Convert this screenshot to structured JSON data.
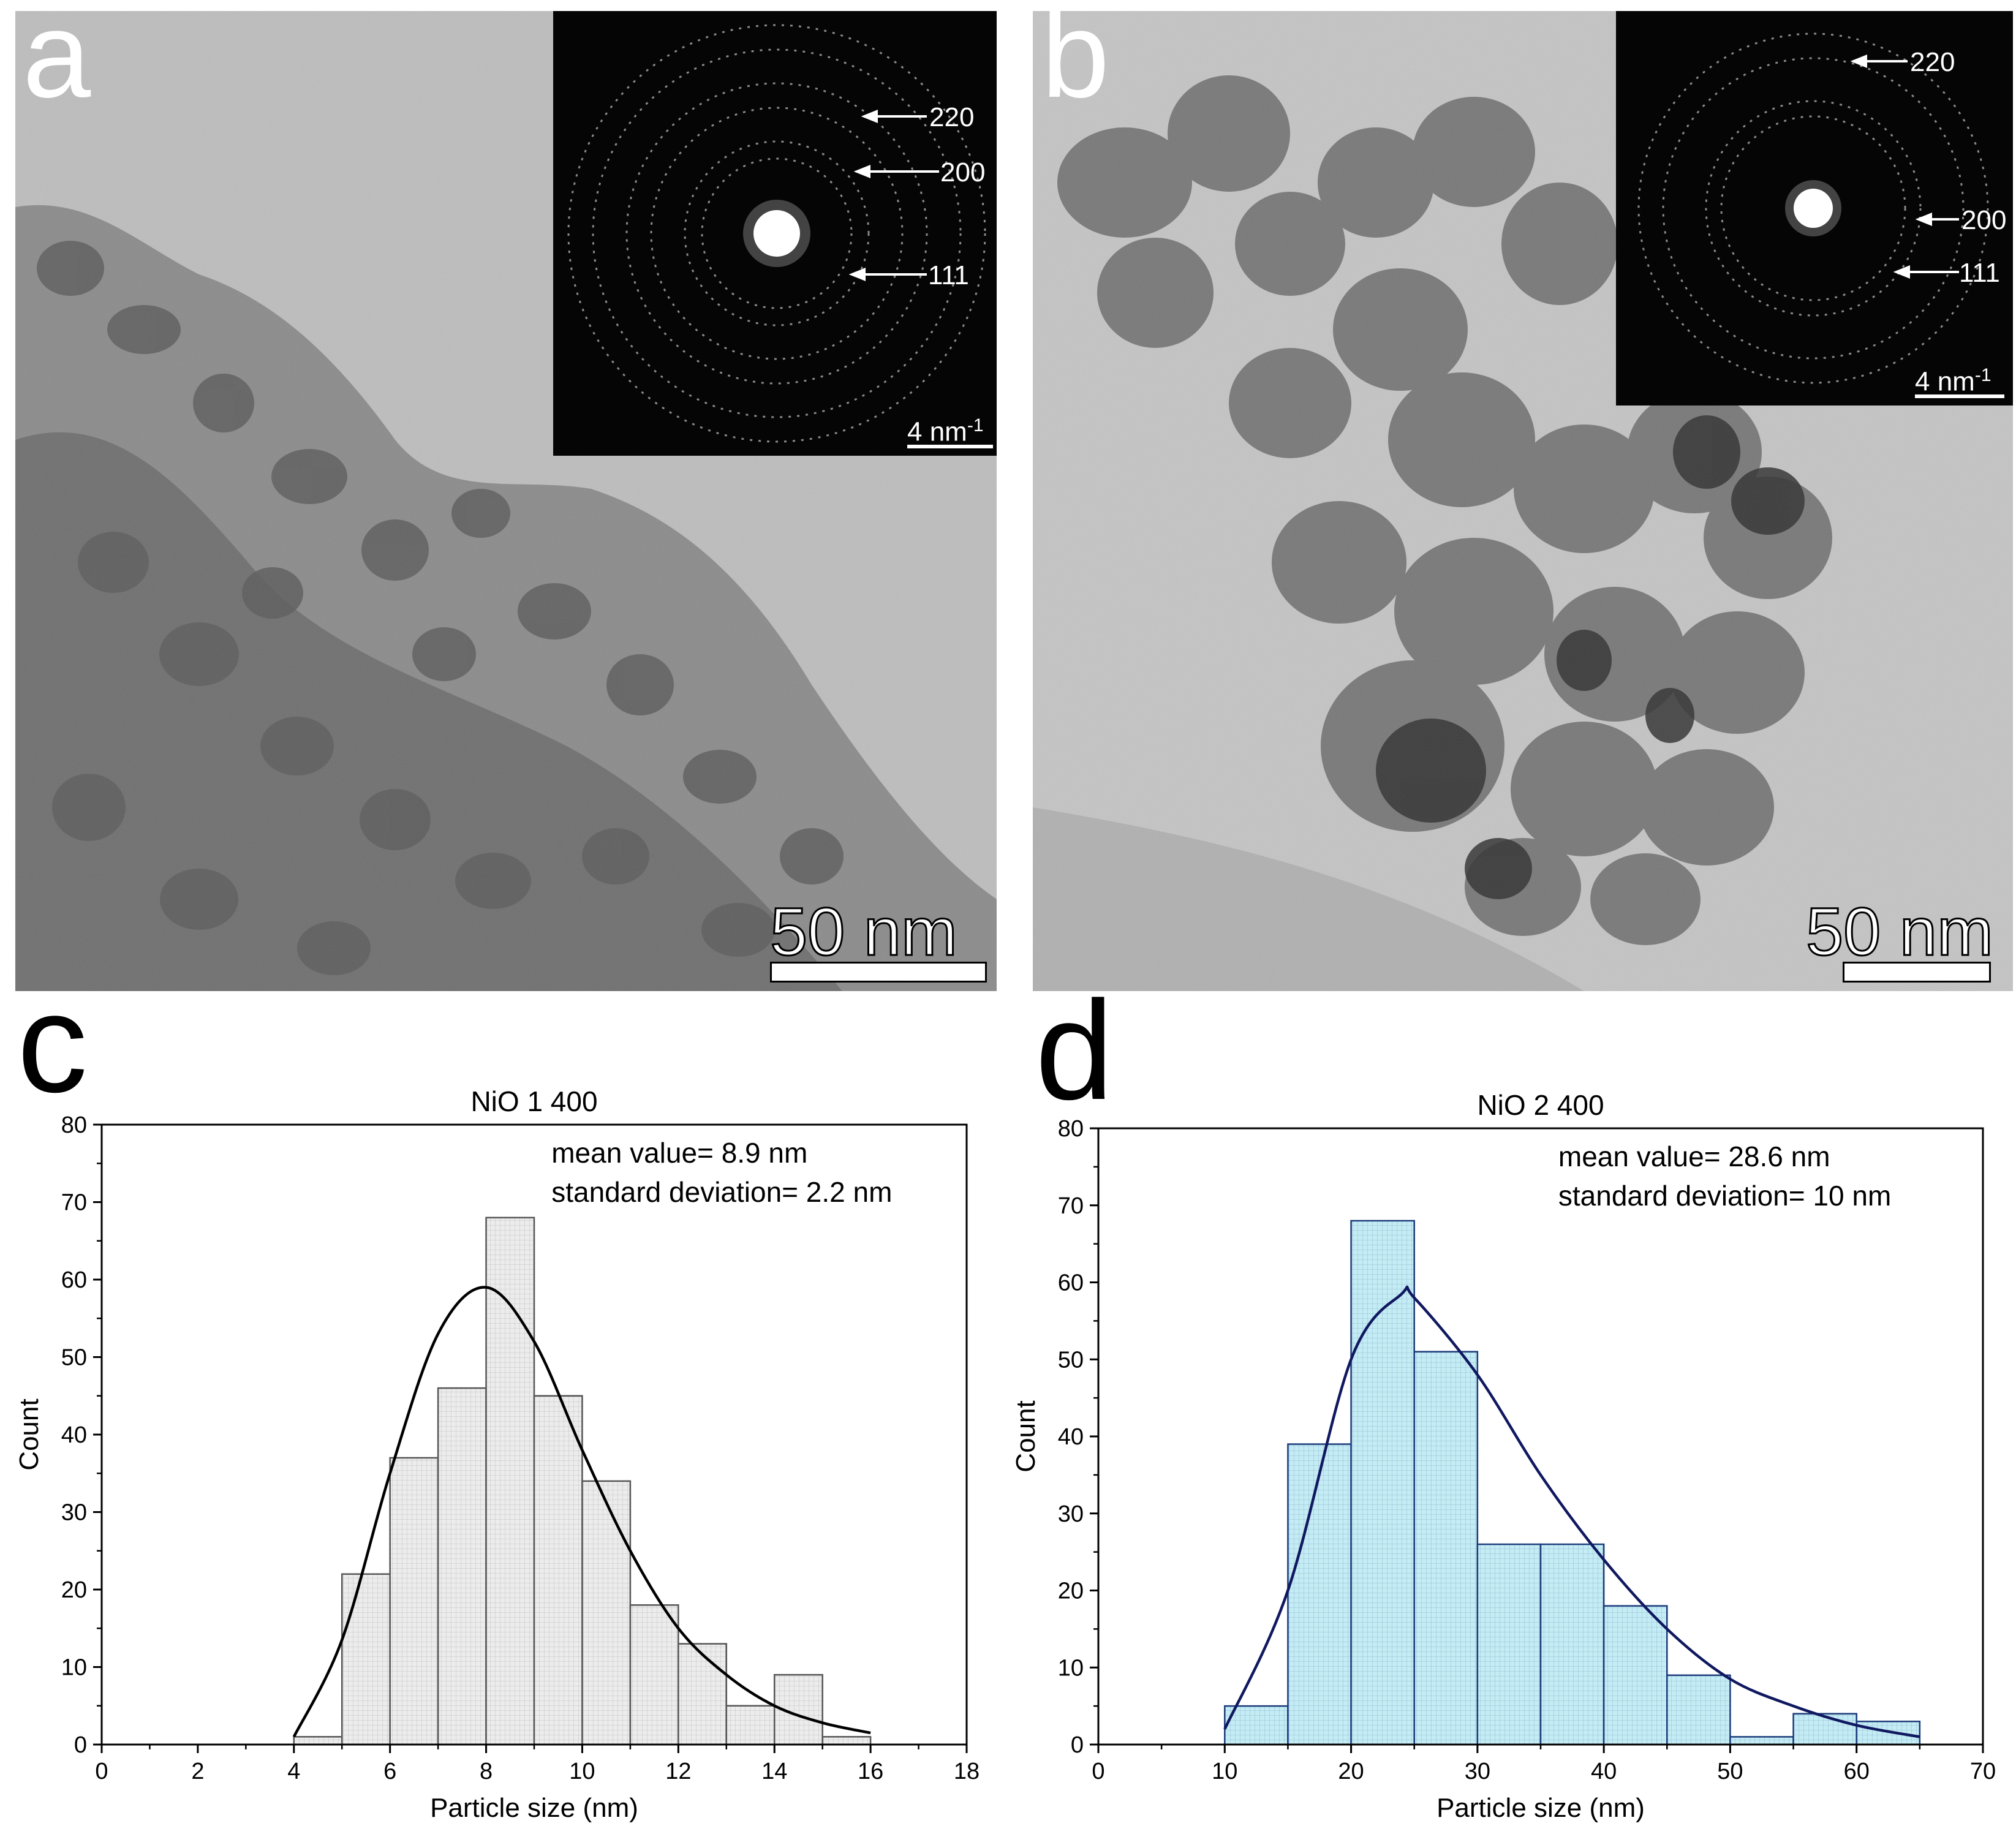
{
  "panels": {
    "a": {
      "letter": "a",
      "scale_bar": "50 nm",
      "inset": {
        "rings": [
          "220",
          "200",
          "111"
        ],
        "scale_bar": "4 nm",
        "scale_exp": "-1"
      }
    },
    "b": {
      "letter": "b",
      "scale_bar": "50 nm",
      "inset": {
        "rings": [
          "220",
          "200",
          "111"
        ],
        "scale_bar": "4 nm",
        "scale_exp": "-1"
      }
    },
    "c": {
      "letter": "c"
    },
    "d": {
      "letter": "d"
    }
  },
  "chart_data": [
    {
      "type": "bar",
      "panel": "c",
      "title": "NiO 1 400",
      "xlabel": "Particle size (nm)",
      "ylabel": "Count",
      "xlim": [
        0,
        18
      ],
      "ylim": [
        0,
        80
      ],
      "xticks": [
        0,
        2,
        4,
        6,
        8,
        10,
        12,
        14,
        16,
        18
      ],
      "yticks": [
        0,
        10,
        20,
        30,
        40,
        50,
        60,
        70,
        80
      ],
      "bin_edges": [
        4,
        5,
        6,
        7,
        8,
        9,
        10,
        11,
        12,
        13,
        14,
        15,
        16
      ],
      "values": [
        1,
        22,
        37,
        46,
        68,
        45,
        34,
        18,
        13,
        5,
        9,
        1
      ],
      "fit_curve": {
        "type": "lognormal",
        "x": [
          4,
          5,
          6,
          7,
          8,
          9,
          10,
          11,
          12,
          13,
          14,
          15,
          16
        ],
        "y": [
          1,
          13.5,
          35,
          53,
          59,
          52,
          38,
          25,
          15,
          9,
          5,
          2.8,
          1.5
        ]
      },
      "annotations": [
        "mean value= 8.9 nm",
        "standard deviation= 2.2 nm"
      ],
      "colors": {
        "bar_fill": "#ececec",
        "bar_edge": "#555555",
        "curve": "#000000"
      }
    },
    {
      "type": "bar",
      "panel": "d",
      "title": "NiO 2 400",
      "xlabel": "Particle size (nm)",
      "ylabel": "Count",
      "xlim": [
        0,
        70
      ],
      "ylim": [
        0,
        80
      ],
      "xticks": [
        0,
        10,
        20,
        30,
        40,
        50,
        60,
        70
      ],
      "yticks": [
        0,
        10,
        20,
        30,
        40,
        50,
        60,
        70,
        80
      ],
      "bin_edges": [
        10,
        15,
        20,
        25,
        30,
        35,
        40,
        45,
        50,
        55,
        60,
        65
      ],
      "values": [
        5,
        39,
        68,
        51,
        26,
        26,
        18,
        9,
        1,
        4,
        3
      ],
      "fit_curve": {
        "type": "lognormal",
        "x": [
          10,
          15,
          20,
          24,
          25,
          30,
          35,
          40,
          45,
          50,
          55,
          60,
          65
        ],
        "y": [
          2,
          20,
          50,
          58.5,
          58,
          48,
          35,
          24,
          15,
          8.5,
          5,
          2.5,
          1
        ]
      },
      "annotations": [
        "mean value= 28.6 nm",
        "standard deviation= 10 nm"
      ],
      "colors": {
        "bar_fill": "#c4ecf4",
        "bar_edge": "#1a3a7a",
        "curve": "#101860"
      }
    }
  ]
}
